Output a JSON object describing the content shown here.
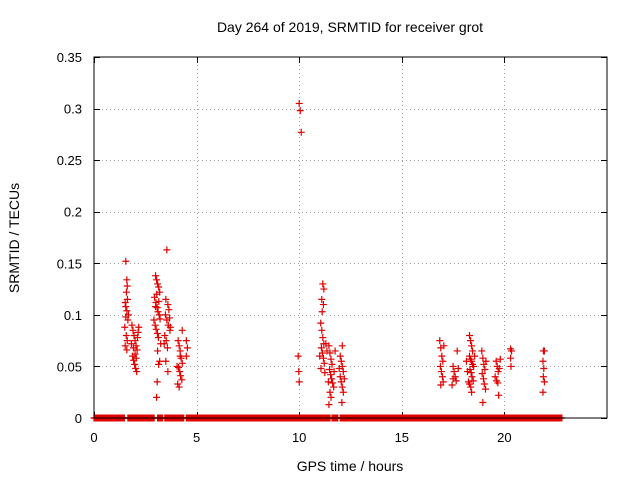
{
  "chart_data": {
    "type": "scatter",
    "title": "Day 264 of 2019, SRMTID for receiver grot",
    "xlabel": "GPS time / hours",
    "ylabel": "SRMTID / TECUs",
    "xlim": [
      0,
      25
    ],
    "ylim": [
      0,
      0.35
    ],
    "x_ticks": [
      0,
      5,
      10,
      15,
      20
    ],
    "x_tick_labels": [
      "0",
      "5",
      "10",
      "15",
      "20"
    ],
    "y_ticks": [
      0,
      0.05,
      0.1,
      0.15,
      0.2,
      0.25,
      0.3,
      0.35
    ],
    "y_tick_labels": [
      "0",
      "0.05",
      "0.1",
      "0.15",
      "0.2",
      "0.25",
      "0.3",
      "0.35"
    ],
    "grid": true,
    "marker": "+",
    "series": [
      {
        "name": "SRMTID",
        "color": "#e00000",
        "clusters": [
          {
            "x_range": [
              1.5,
              1.7
            ],
            "points": [
              [
                1.55,
                0.152
              ],
              [
                1.6,
                0.134
              ],
              [
                1.62,
                0.128
              ],
              [
                1.58,
                0.122
              ],
              [
                1.52,
                0.112
              ],
              [
                1.6,
                0.104
              ],
              [
                1.55,
                0.098
              ],
              [
                1.65,
                0.095
              ],
              [
                1.5,
                0.088
              ],
              [
                1.57,
                0.08
              ],
              [
                1.62,
                0.075
              ],
              [
                1.52,
                0.07
              ],
              [
                1.6,
                0.066
              ],
              [
                1.68,
                0.1
              ],
              [
                1.55,
                0.108
              ],
              [
                1.63,
                0.115
              ]
            ]
          },
          {
            "x_range": [
              1.8,
              2.2
            ],
            "points": [
              [
                1.85,
                0.09
              ],
              [
                1.9,
                0.085
              ],
              [
                1.95,
                0.08
              ],
              [
                2.0,
                0.075
              ],
              [
                2.05,
                0.07
              ],
              [
                2.1,
                0.066
              ],
              [
                1.88,
                0.06
              ],
              [
                1.93,
                0.056
              ],
              [
                1.98,
                0.052
              ],
              [
                2.03,
                0.048
              ],
              [
                2.08,
                0.045
              ],
              [
                2.12,
                0.078
              ],
              [
                2.15,
                0.083
              ],
              [
                2.18,
                0.088
              ],
              [
                1.82,
                0.072
              ],
              [
                2.0,
                0.062
              ],
              [
                1.92,
                0.068
              ],
              [
                2.06,
                0.058
              ]
            ]
          },
          {
            "x_range": [
              2.9,
              3.3
            ],
            "points": [
              [
                3.0,
                0.138
              ],
              [
                3.05,
                0.134
              ],
              [
                3.1,
                0.13
              ],
              [
                3.15,
                0.127
              ],
              [
                3.2,
                0.122
              ],
              [
                2.95,
                0.117
              ],
              [
                3.02,
                0.112
              ],
              [
                3.08,
                0.107
              ],
              [
                3.12,
                0.103
              ],
              [
                3.18,
                0.1
              ],
              [
                3.22,
                0.096
              ],
              [
                2.98,
                0.09
              ],
              [
                3.03,
                0.086
              ],
              [
                3.09,
                0.082
              ],
              [
                3.14,
                0.078
              ],
              [
                3.25,
                0.072
              ],
              [
                3.0,
                0.108
              ],
              [
                3.16,
                0.113
              ],
              [
                2.92,
                0.095
              ],
              [
                3.06,
                0.12
              ],
              [
                3.1,
                0.065
              ],
              [
                3.15,
                0.052
              ],
              [
                3.2,
                0.055
              ],
              [
                3.08,
                0.035
              ],
              [
                3.05,
                0.02
              ]
            ]
          },
          {
            "x_range": [
              3.4,
              3.8
            ],
            "points": [
              [
                3.55,
                0.163
              ],
              [
                3.5,
                0.115
              ],
              [
                3.6,
                0.11
              ],
              [
                3.65,
                0.105
              ],
              [
                3.48,
                0.1
              ],
              [
                3.55,
                0.095
              ],
              [
                3.62,
                0.09
              ],
              [
                3.7,
                0.085
              ],
              [
                3.45,
                0.08
              ],
              [
                3.52,
                0.075
              ],
              [
                3.58,
                0.068
              ],
              [
                3.68,
                0.097
              ],
              [
                3.72,
                0.088
              ],
              [
                3.5,
                0.055
              ],
              [
                3.6,
                0.045
              ],
              [
                3.42,
                0.072
              ]
            ]
          },
          {
            "x_range": [
              4.0,
              4.6
            ],
            "points": [
              [
                4.1,
                0.075
              ],
              [
                4.15,
                0.07
              ],
              [
                4.2,
                0.065
              ],
              [
                4.25,
                0.058
              ],
              [
                4.3,
                0.053
              ],
              [
                4.12,
                0.049
              ],
              [
                4.18,
                0.045
              ],
              [
                4.22,
                0.041
              ],
              [
                4.28,
                0.037
              ],
              [
                4.08,
                0.033
              ],
              [
                4.15,
                0.03
              ],
              [
                4.3,
                0.085
              ],
              [
                4.2,
                0.06
              ],
              [
                4.5,
                0.075
              ],
              [
                4.55,
                0.068
              ],
              [
                4.5,
                0.06
              ],
              [
                4.05,
                0.05
              ]
            ]
          },
          {
            "x_range": [
              9.9,
              10.2
            ],
            "points": [
              [
                10.0,
                0.305
              ],
              [
                10.05,
                0.298
              ],
              [
                10.1,
                0.277
              ],
              [
                9.95,
                0.06
              ],
              [
                9.98,
                0.045
              ],
              [
                10.0,
                0.035
              ]
            ]
          },
          {
            "x_range": [
              11.0,
              11.4
            ],
            "points": [
              [
                11.15,
                0.13
              ],
              [
                11.2,
                0.125
              ],
              [
                11.1,
                0.115
              ],
              [
                11.18,
                0.11
              ],
              [
                11.12,
                0.103
              ],
              [
                11.05,
                0.092
              ],
              [
                11.1,
                0.085
              ],
              [
                11.15,
                0.078
              ],
              [
                11.2,
                0.072
              ],
              [
                11.08,
                0.068
              ],
              [
                11.13,
                0.063
              ],
              [
                11.18,
                0.058
              ],
              [
                11.22,
                0.053
              ],
              [
                11.06,
                0.048
              ],
              [
                11.25,
                0.044
              ],
              [
                11.0,
                0.06
              ],
              [
                11.3,
                0.072
              ],
              [
                11.35,
                0.065
              ]
            ]
          },
          {
            "x_range": [
              11.4,
              11.8
            ],
            "points": [
              [
                11.45,
                0.07
              ],
              [
                11.5,
                0.063
              ],
              [
                11.55,
                0.057
              ],
              [
                11.6,
                0.052
              ],
              [
                11.48,
                0.047
              ],
              [
                11.53,
                0.042
              ],
              [
                11.58,
                0.038
              ],
              [
                11.63,
                0.034
              ],
              [
                11.68,
                0.03
              ],
              [
                11.5,
                0.025
              ],
              [
                11.55,
                0.02
              ],
              [
                11.45,
                0.013
              ],
              [
                11.7,
                0.045
              ],
              [
                11.75,
                0.065
              ],
              [
                11.42,
                0.035
              ]
            ]
          },
          {
            "x_range": [
              11.9,
              12.3
            ],
            "points": [
              [
                12.1,
                0.07
              ],
              [
                12.0,
                0.06
              ],
              [
                12.05,
                0.055
              ],
              [
                12.1,
                0.05
              ],
              [
                12.15,
                0.045
              ],
              [
                12.0,
                0.04
              ],
              [
                12.05,
                0.035
              ],
              [
                12.1,
                0.03
              ],
              [
                12.15,
                0.025
              ],
              [
                12.2,
                0.038
              ],
              [
                11.95,
                0.048
              ],
              [
                12.08,
                0.015
              ]
            ]
          },
          {
            "x_range": [
              16.8,
              17.1
            ],
            "points": [
              [
                16.85,
                0.075
              ],
              [
                16.9,
                0.068
              ],
              [
                16.95,
                0.06
              ],
              [
                17.0,
                0.055
              ],
              [
                16.88,
                0.05
              ],
              [
                16.93,
                0.045
              ],
              [
                16.98,
                0.04
              ],
              [
                17.02,
                0.035
              ],
              [
                16.9,
                0.032
              ],
              [
                17.05,
                0.07
              ]
            ]
          },
          {
            "x_range": [
              17.4,
              17.8
            ],
            "points": [
              [
                17.5,
                0.05
              ],
              [
                17.55,
                0.045
              ],
              [
                17.6,
                0.04
              ],
              [
                17.65,
                0.036
              ],
              [
                17.45,
                0.032
              ],
              [
                17.7,
                0.065
              ],
              [
                17.75,
                0.048
              ],
              [
                17.5,
                0.038
              ]
            ]
          },
          {
            "x_range": [
              18.1,
              18.6
            ],
            "points": [
              [
                18.3,
                0.08
              ],
              [
                18.35,
                0.075
              ],
              [
                18.4,
                0.07
              ],
              [
                18.45,
                0.065
              ],
              [
                18.3,
                0.06
              ],
              [
                18.35,
                0.057
              ],
              [
                18.4,
                0.055
              ],
              [
                18.45,
                0.052
              ],
              [
                18.5,
                0.05
              ],
              [
                18.32,
                0.047
              ],
              [
                18.38,
                0.044
              ],
              [
                18.42,
                0.04
              ],
              [
                18.48,
                0.036
              ],
              [
                18.3,
                0.033
              ],
              [
                18.36,
                0.03
              ],
              [
                18.4,
                0.025
              ],
              [
                18.2,
                0.045
              ],
              [
                18.25,
                0.035
              ],
              [
                18.55,
                0.06
              ],
              [
                18.15,
                0.055
              ]
            ]
          },
          {
            "x_range": [
              18.8,
              19.2
            ],
            "points": [
              [
                18.9,
                0.065
              ],
              [
                18.95,
                0.058
              ],
              [
                19.0,
                0.052
              ],
              [
                19.05,
                0.047
              ],
              [
                18.92,
                0.043
              ],
              [
                18.98,
                0.038
              ],
              [
                19.02,
                0.033
              ],
              [
                19.08,
                0.028
              ],
              [
                18.95,
                0.015
              ],
              [
                19.1,
                0.055
              ]
            ]
          },
          {
            "x_range": [
              19.5,
              19.9
            ],
            "points": [
              [
                19.6,
                0.055
              ],
              [
                19.65,
                0.05
              ],
              [
                19.7,
                0.045
              ],
              [
                19.55,
                0.04
              ],
              [
                19.62,
                0.036
              ],
              [
                19.68,
                0.034
              ],
              [
                19.72,
                0.022
              ],
              [
                19.8,
                0.057
              ],
              [
                19.75,
                0.048
              ]
            ]
          },
          {
            "x_range": [
              20.2,
              20.5
            ],
            "points": [
              [
                20.3,
                0.067
              ],
              [
                20.35,
                0.065
              ],
              [
                20.3,
                0.058
              ],
              [
                20.32,
                0.05
              ]
            ]
          },
          {
            "x_range": [
              21.8,
              22.1
            ],
            "points": [
              [
                21.9,
                0.065
              ],
              [
                21.95,
                0.065
              ],
              [
                21.88,
                0.055
              ],
              [
                21.92,
                0.048
              ],
              [
                21.9,
                0.04
              ],
              [
                21.95,
                0.035
              ],
              [
                21.88,
                0.025
              ]
            ]
          }
        ],
        "baseline_segments": [
          [
            0.0,
            1.5
          ],
          [
            1.65,
            2.95
          ],
          [
            3.1,
            3.35
          ],
          [
            3.45,
            4.4
          ],
          [
            4.5,
            11.5
          ],
          [
            11.6,
            11.9
          ],
          [
            12.0,
            22.8
          ]
        ],
        "baseline_value": 0
      }
    ]
  }
}
